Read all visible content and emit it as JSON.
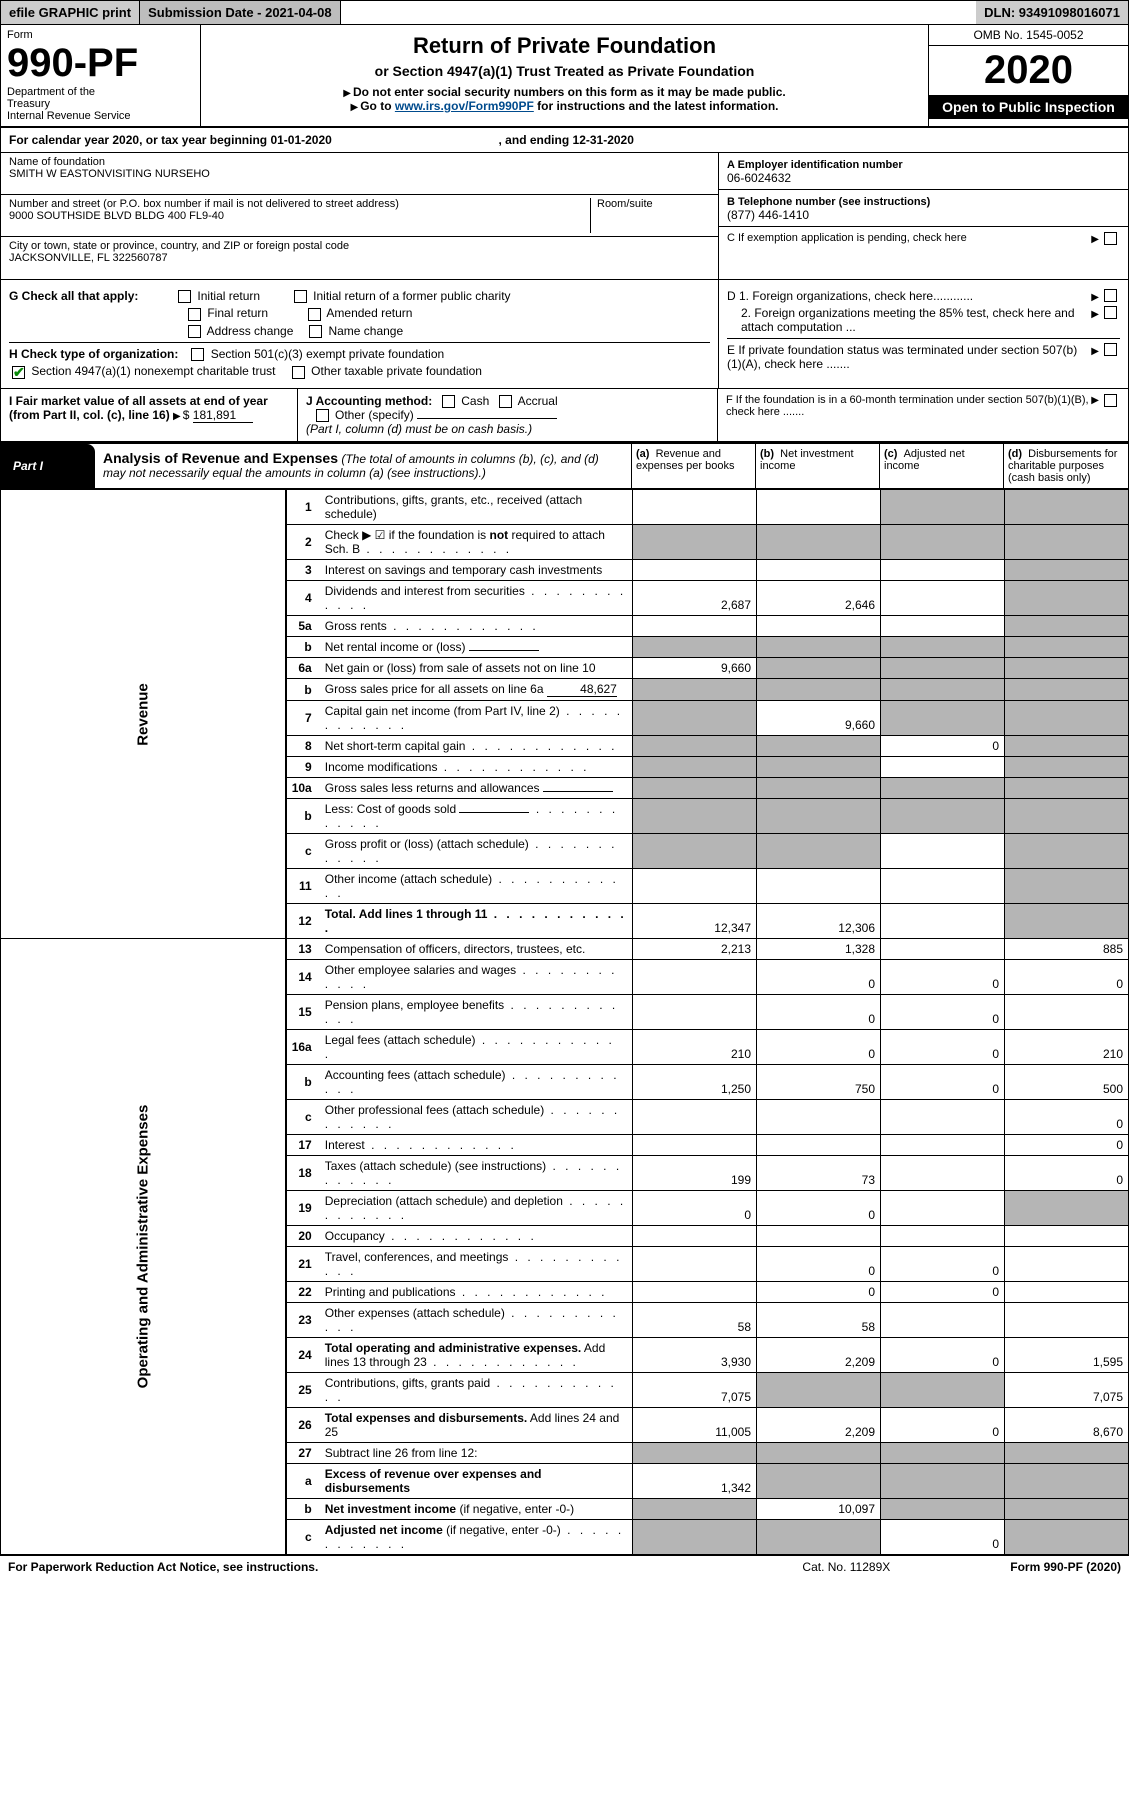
{
  "topbar": {
    "efile": "efile GRAPHIC print",
    "subdate": "Submission Date - 2021-04-08",
    "dln": "DLN: 93491098016071"
  },
  "header": {
    "form": "Form",
    "num": "990-PF",
    "dept": "Department of the Treasury\nInternal Revenue Service",
    "title": "Return of Private Foundation",
    "subtitle": "or Section 4947(a)(1) Trust Treated as Private Foundation",
    "note1": "Do not enter social security numbers on this form as it may be made public.",
    "note2": "Go to ",
    "note2link": "www.irs.gov/Form990PF",
    "note2after": " for instructions and the latest information.",
    "omb": "OMB No. 1545-0052",
    "year": "2020",
    "open": "Open to Public Inspection"
  },
  "cal": {
    "text": "For calendar year 2020, or tax year beginning 01-01-2020",
    "ending": ", and ending 12-31-2020"
  },
  "id": {
    "name_lbl": "Name of foundation",
    "name": "SMITH W EASTONVISITING NURSEHO",
    "addr_lbl": "Number and street (or P.O. box number if mail is not delivered to street address)",
    "addr": "9000 SOUTHSIDE BLVD BLDG 400 FL9-40",
    "room_lbl": "Room/suite",
    "city_lbl": "City or town, state or province, country, and ZIP or foreign postal code",
    "city": "JACKSONVILLE, FL  322560787",
    "a_lbl": "A Employer identification number",
    "a_val": "06-6024632",
    "b_lbl": "B Telephone number (see instructions)",
    "b_val": "(877) 446-1410",
    "c_lbl": "C If exemption application is pending, check here",
    "d1": "D 1. Foreign organizations, check here............",
    "d2": "2. Foreign organizations meeting the 85% test, check here and attach computation ...",
    "e": "E  If private foundation status was terminated under section 507(b)(1)(A), check here .......",
    "f": "F  If the foundation is in a 60-month termination under section 507(b)(1)(B), check here .......",
    "g": "G Check all that apply:",
    "g_opts": [
      "Initial return",
      "Final return",
      "Address change",
      "Initial return of a former public charity",
      "Amended return",
      "Name change"
    ],
    "h": "H Check type of organization:",
    "h1": "Section 501(c)(3) exempt private foundation",
    "h2": "Section 4947(a)(1) nonexempt charitable trust",
    "h3": "Other taxable private foundation",
    "i": "I Fair market value of all assets at end of year (from Part II, col. (c), line 16) ",
    "i_val": "181,891",
    "j": "J Accounting method:",
    "j_cash": "Cash",
    "j_accr": "Accrual",
    "j_other": "Other (specify)",
    "j_note": "(Part I, column (d) must be on cash basis.)"
  },
  "part": {
    "tab": "Part I",
    "bold": "Analysis of Revenue and Expenses",
    "ital": " (The total of amounts in columns (b), (c), and (d) may not necessarily equal the amounts in column (a) (see instructions).)",
    "ca": "(a)   Revenue and expenses per books",
    "cb": "(b)   Net investment income",
    "cc": "(c)   Adjusted net income",
    "cd": "(d)   Disbursements for charitable purposes (cash basis only)"
  },
  "side": {
    "rev": "Revenue",
    "exp": "Operating and Administrative Expenses"
  },
  "rows": [
    {
      "n": "1",
      "d": "Contributions, gifts, grants, etc., received (attach schedule)",
      "a": "",
      "b": "",
      "c": "s",
      "dd": "s"
    },
    {
      "n": "2",
      "d": "Check ▶ ☑ if the foundation is <b>not</b> required to attach Sch. B",
      "a": "s",
      "b": "s",
      "c": "s",
      "dd": "s",
      "dots": true
    },
    {
      "n": "3",
      "d": "Interest on savings and temporary cash investments",
      "a": "",
      "b": "",
      "c": "",
      "dd": "s"
    },
    {
      "n": "4",
      "d": "Dividends and interest from securities",
      "a": "2,687",
      "b": "2,646",
      "c": "",
      "dd": "s",
      "dots": true
    },
    {
      "n": "5a",
      "d": "Gross rents",
      "a": "",
      "b": "",
      "c": "",
      "dd": "s",
      "dots": true
    },
    {
      "n": "b",
      "d": "Net rental income or (loss)",
      "a": "s",
      "b": "s",
      "c": "s",
      "dd": "s",
      "inline": true
    },
    {
      "n": "6a",
      "d": "Net gain or (loss) from sale of assets not on line 10",
      "a": "9,660",
      "b": "s",
      "c": "s",
      "dd": "s"
    },
    {
      "n": "b",
      "d": "Gross sales price for all assets on line 6a",
      "a": "s",
      "b": "s",
      "c": "s",
      "dd": "s",
      "inline": true,
      "iv": "48,627"
    },
    {
      "n": "7",
      "d": "Capital gain net income (from Part IV, line 2)",
      "a": "s",
      "b": "9,660",
      "c": "s",
      "dd": "s",
      "dots": true
    },
    {
      "n": "8",
      "d": "Net short-term capital gain",
      "a": "s",
      "b": "s",
      "c": "0",
      "dd": "s",
      "dots": true
    },
    {
      "n": "9",
      "d": "Income modifications",
      "a": "s",
      "b": "s",
      "c": "",
      "dd": "s",
      "dots": true
    },
    {
      "n": "10a",
      "d": "Gross sales less returns and allowances",
      "a": "s",
      "b": "s",
      "c": "s",
      "dd": "s",
      "inline": true
    },
    {
      "n": "b",
      "d": "Less: Cost of goods sold",
      "a": "s",
      "b": "s",
      "c": "s",
      "dd": "s",
      "inline": true,
      "dots": true
    },
    {
      "n": "c",
      "d": "Gross profit or (loss) (attach schedule)",
      "a": "s",
      "b": "s",
      "c": "",
      "dd": "s",
      "dots": true
    },
    {
      "n": "11",
      "d": "Other income (attach schedule)",
      "a": "",
      "b": "",
      "c": "",
      "dd": "s",
      "dots": true
    },
    {
      "n": "12",
      "d": "<b>Total.</b> Add lines 1 through 11",
      "a": "12,347",
      "b": "12,306",
      "c": "",
      "dd": "s",
      "dots": true,
      "bold": true
    }
  ],
  "exp_rows": [
    {
      "n": "13",
      "d": "Compensation of officers, directors, trustees, etc.",
      "a": "2,213",
      "b": "1,328",
      "c": "",
      "dd": "885"
    },
    {
      "n": "14",
      "d": "Other employee salaries and wages",
      "a": "",
      "b": "0",
      "c": "0",
      "dd": "0",
      "dots": true
    },
    {
      "n": "15",
      "d": "Pension plans, employee benefits",
      "a": "",
      "b": "0",
      "c": "0",
      "dd": "",
      "dots": true
    },
    {
      "n": "16a",
      "d": "Legal fees (attach schedule)",
      "a": "210",
      "b": "0",
      "c": "0",
      "dd": "210",
      "dots": true
    },
    {
      "n": "b",
      "d": "Accounting fees (attach schedule)",
      "a": "1,250",
      "b": "750",
      "c": "0",
      "dd": "500",
      "dots": true
    },
    {
      "n": "c",
      "d": "Other professional fees (attach schedule)",
      "a": "",
      "b": "",
      "c": "",
      "dd": "0",
      "dots": true
    },
    {
      "n": "17",
      "d": "Interest",
      "a": "",
      "b": "",
      "c": "",
      "dd": "0",
      "dots": true
    },
    {
      "n": "18",
      "d": "Taxes (attach schedule) (see instructions)",
      "a": "199",
      "b": "73",
      "c": "",
      "dd": "0",
      "dots": true
    },
    {
      "n": "19",
      "d": "Depreciation (attach schedule) and depletion",
      "a": "0",
      "b": "0",
      "c": "",
      "dd": "s",
      "dots": true
    },
    {
      "n": "20",
      "d": "Occupancy",
      "a": "",
      "b": "",
      "c": "",
      "dd": "",
      "dots": true
    },
    {
      "n": "21",
      "d": "Travel, conferences, and meetings",
      "a": "",
      "b": "0",
      "c": "0",
      "dd": "",
      "dots": true
    },
    {
      "n": "22",
      "d": "Printing and publications",
      "a": "",
      "b": "0",
      "c": "0",
      "dd": "",
      "dots": true
    },
    {
      "n": "23",
      "d": "Other expenses (attach schedule)",
      "a": "58",
      "b": "58",
      "c": "",
      "dd": "",
      "dots": true
    },
    {
      "n": "24",
      "d": "<b>Total operating and administrative expenses.</b> Add lines 13 through 23",
      "a": "3,930",
      "b": "2,209",
      "c": "0",
      "dd": "1,595",
      "dots": true
    },
    {
      "n": "25",
      "d": "Contributions, gifts, grants paid",
      "a": "7,075",
      "b": "s",
      "c": "s",
      "dd": "7,075",
      "dots": true
    },
    {
      "n": "26",
      "d": "<b>Total expenses and disbursements.</b> Add lines 24 and 25",
      "a": "11,005",
      "b": "2,209",
      "c": "0",
      "dd": "8,670"
    },
    {
      "n": "27",
      "d": "Subtract line 26 from line 12:",
      "a": "s",
      "b": "s",
      "c": "s",
      "dd": "s"
    },
    {
      "n": "a",
      "d": "<b>Excess of revenue over expenses and disbursements</b>",
      "a": "1,342",
      "b": "s",
      "c": "s",
      "dd": "s"
    },
    {
      "n": "b",
      "d": "<b>Net investment income</b> (if negative, enter -0-)",
      "a": "s",
      "b": "10,097",
      "c": "s",
      "dd": "s"
    },
    {
      "n": "c",
      "d": "<b>Adjusted net income</b> (if negative, enter -0-)",
      "a": "s",
      "b": "s",
      "c": "0",
      "dd": "s",
      "dots": true
    }
  ],
  "footer": {
    "left": "For Paperwork Reduction Act Notice, see instructions.",
    "mid": "Cat. No. 11289X",
    "right": "Form 990-PF (2020)"
  }
}
